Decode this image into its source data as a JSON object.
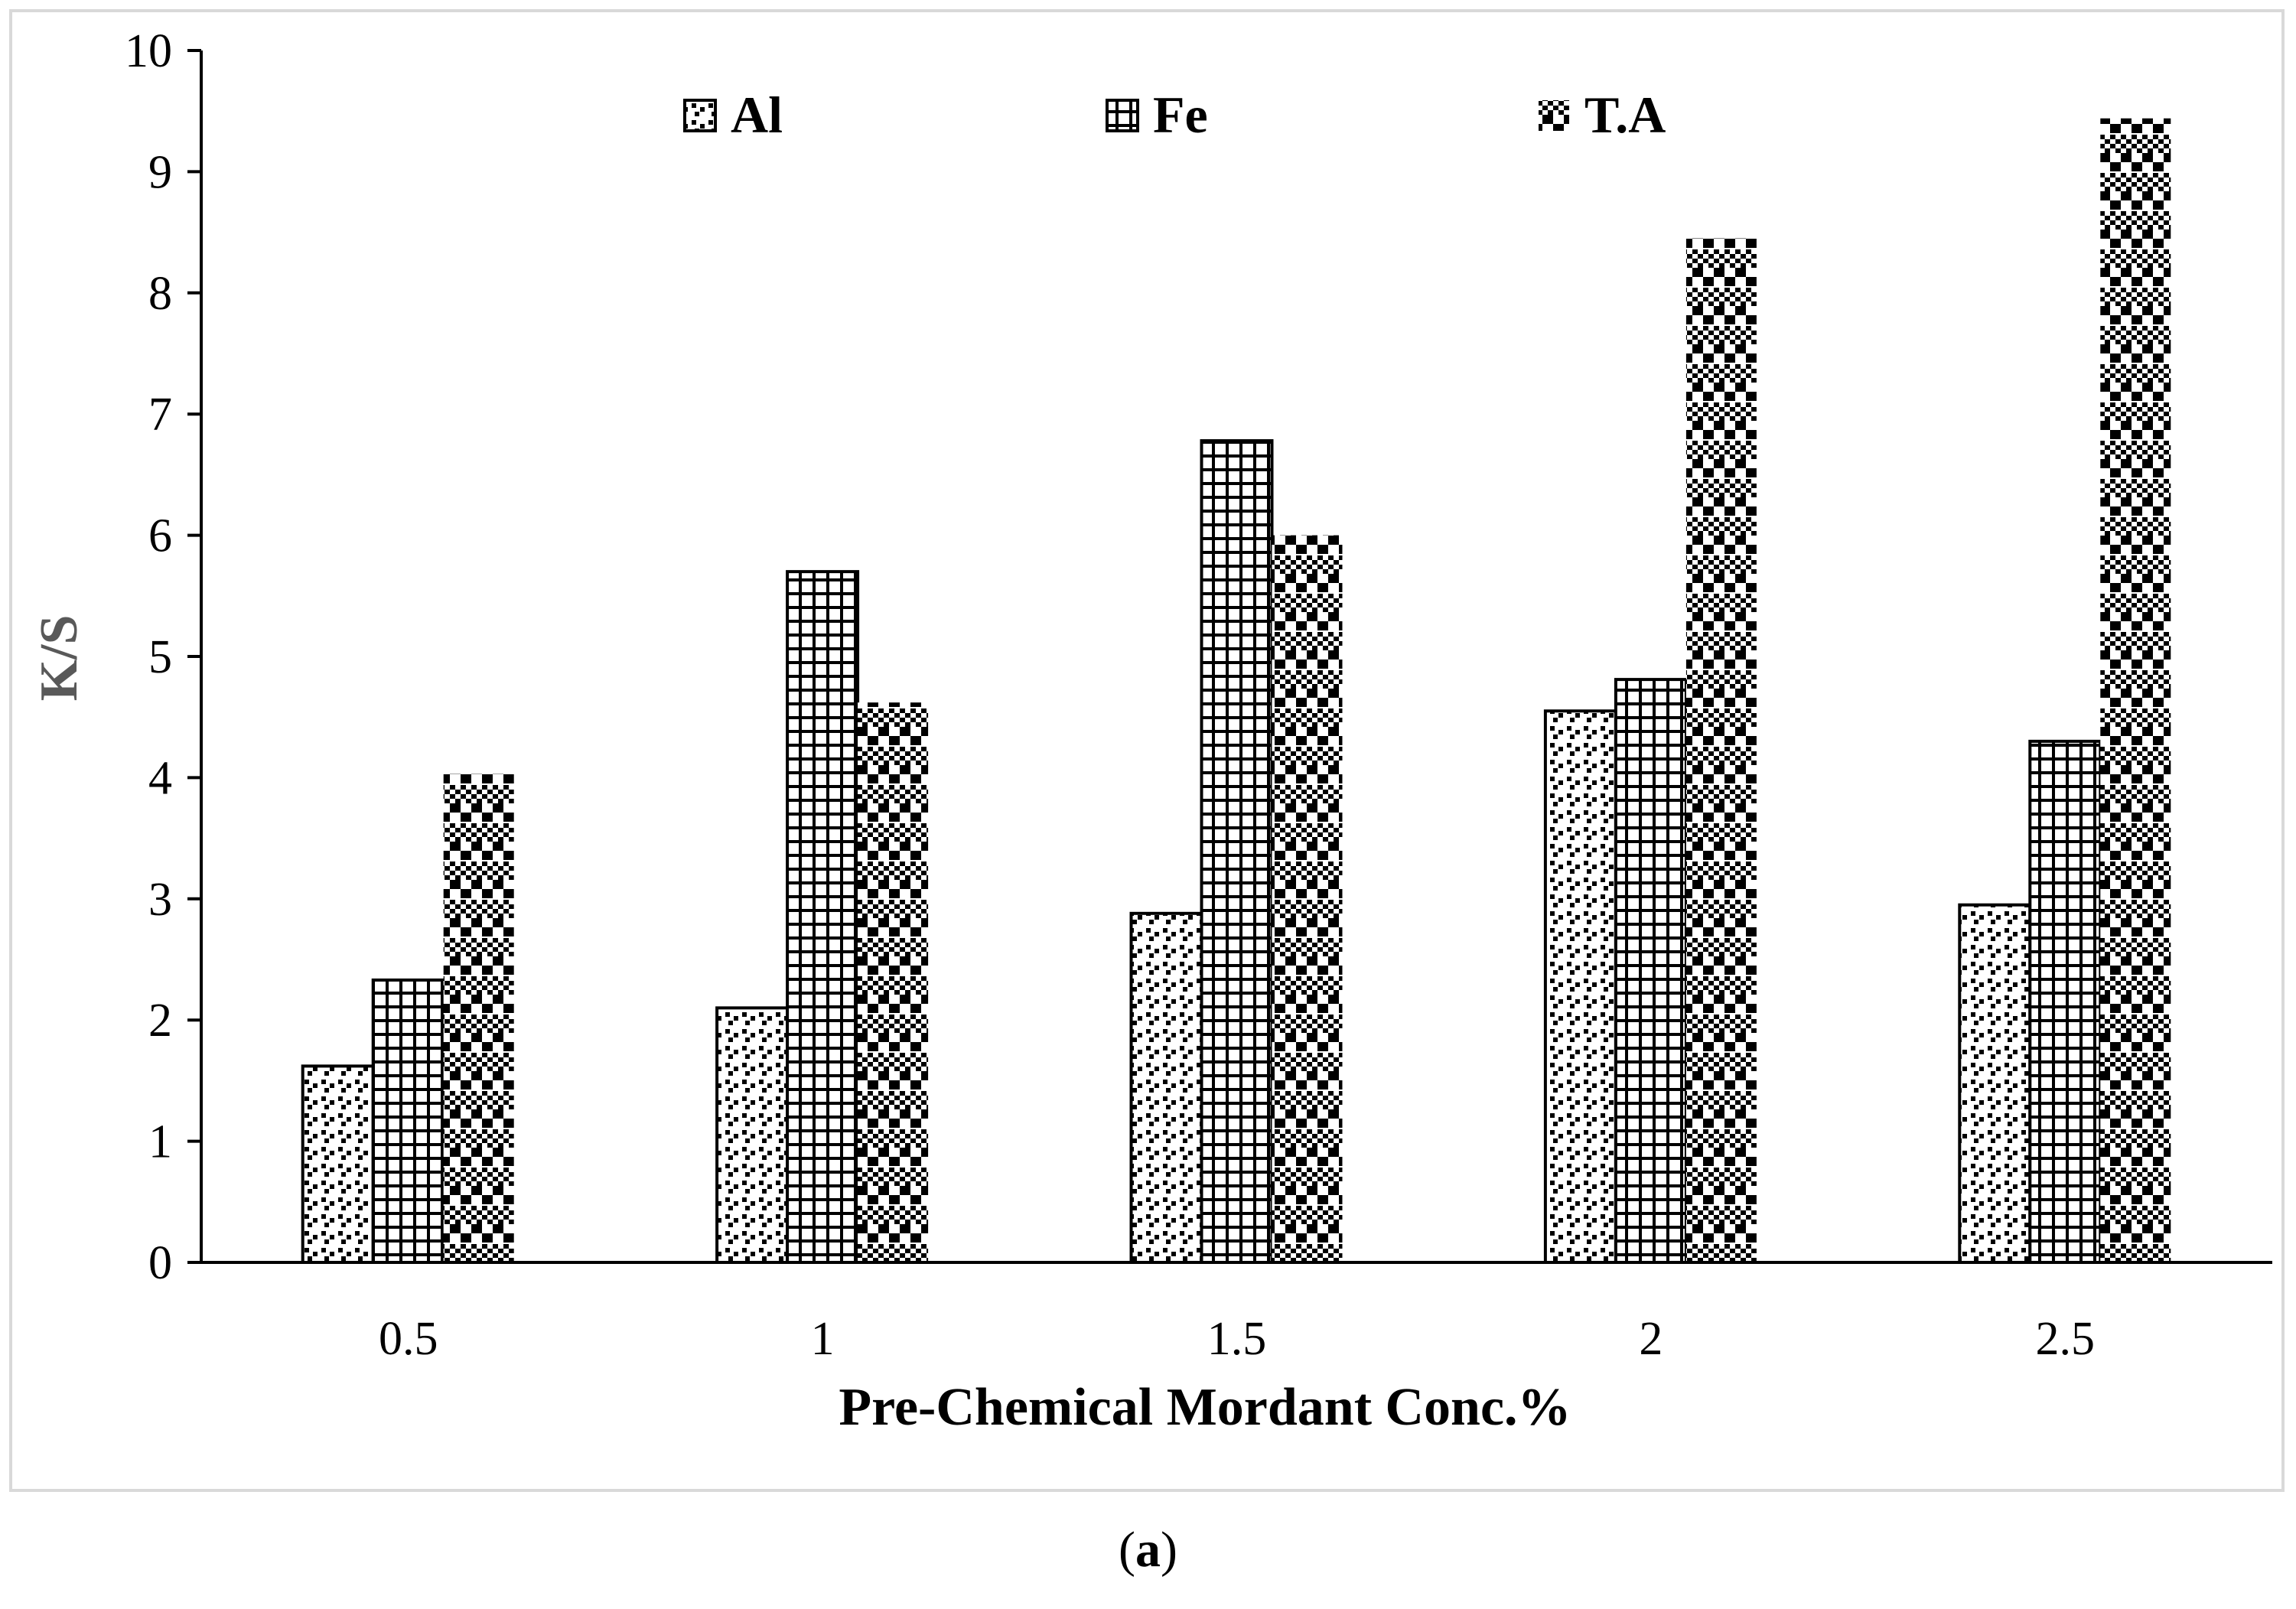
{
  "chart_data": {
    "type": "bar",
    "title": "",
    "xlabel": "Pre-Chemical Mordant Conc.%",
    "ylabel": "K/S",
    "ylim": [
      0,
      10
    ],
    "yticks": [
      "0",
      "1",
      "2",
      "3",
      "4",
      "5",
      "6",
      "7",
      "8",
      "9",
      "10"
    ],
    "categories": [
      "0.5",
      "1",
      "1.5",
      "2",
      "2.5"
    ],
    "series": [
      {
        "name": "Al",
        "pattern": "dots",
        "values": [
          1.62,
          2.1,
          2.88,
          4.55,
          2.95
        ]
      },
      {
        "name": "Fe",
        "pattern": "grid",
        "values": [
          2.33,
          5.7,
          6.78,
          4.81,
          4.3
        ]
      },
      {
        "name": "T.A",
        "pattern": "checker",
        "values": [
          4.03,
          4.62,
          6.0,
          8.45,
          9.44
        ]
      }
    ],
    "legend_position": "top",
    "grid": false
  },
  "caption": {
    "open": "(",
    "letter": "a",
    "close": ")"
  },
  "colors": {
    "axis": "#000000",
    "ylabel": "#595959",
    "frame": "#d9d9d9"
  }
}
